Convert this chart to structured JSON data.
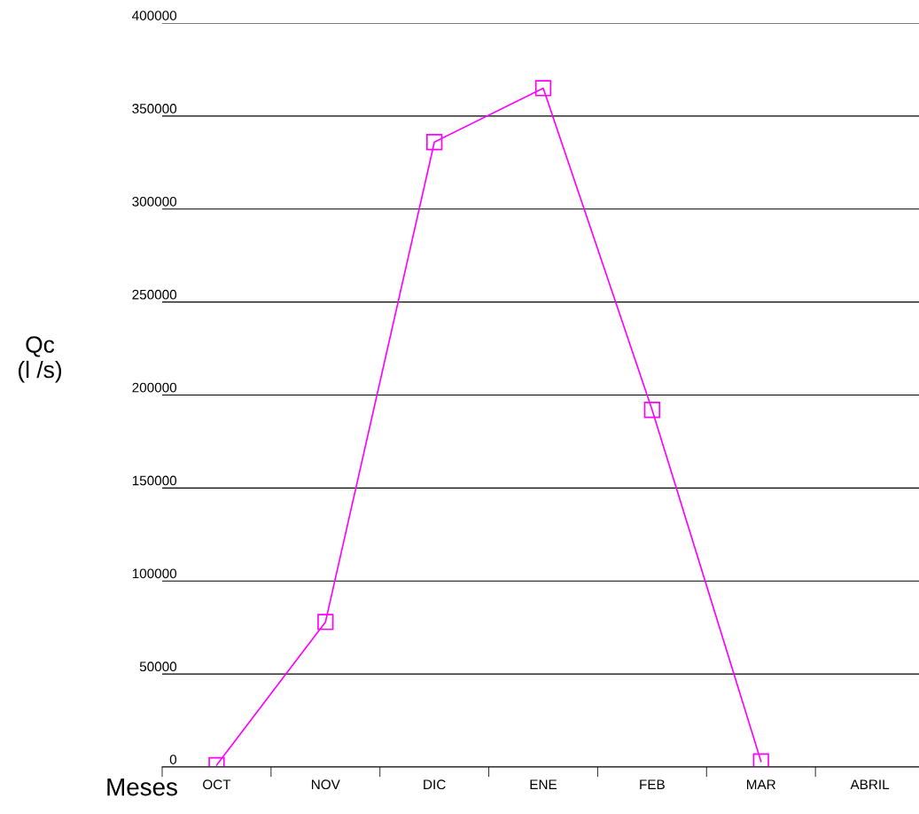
{
  "chart_data": {
    "type": "line",
    "xlabel": "Meses",
    "ylabel": "Qc\n(l /s)",
    "categories": [
      "OCT",
      "NOV",
      "DIC",
      "ENE",
      "FEB",
      "MAR",
      "ABRIL"
    ],
    "series": [
      {
        "color": "#ff00ff",
        "values": [
          1000,
          78000,
          336000,
          365000,
          192000,
          3000,
          null
        ]
      }
    ],
    "ylim": [
      0,
      400000
    ],
    "yticks": [
      0,
      50000,
      100000,
      150000,
      200000,
      250000,
      300000,
      350000,
      400000
    ],
    "grid": "y",
    "marker": "square",
    "line_style": "solid",
    "legend": false
  }
}
